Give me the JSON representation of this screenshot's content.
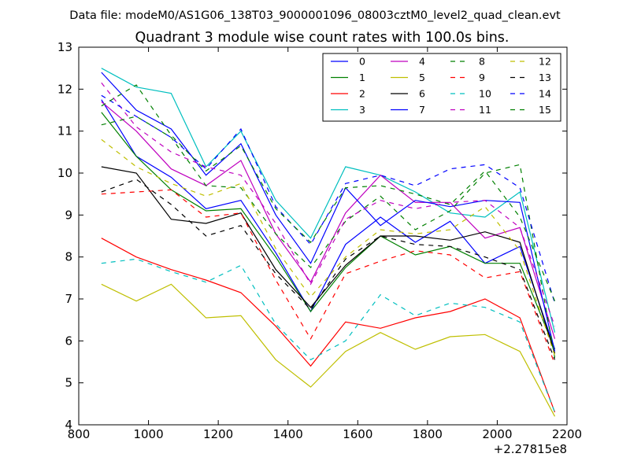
{
  "suptitle": "Data file: modeM0/AS1G06_138T03_9000001096_08003cztM0_level2_quad_clean.evt",
  "chart_data": {
    "type": "line",
    "title": "Quadrant 3 module wise count rates with 100.0s bins.",
    "xlabel": "",
    "ylabel": "",
    "x_offset_label": "+2.27815e8",
    "xlim": [
      800,
      2200
    ],
    "ylim": [
      4,
      13
    ],
    "xticks": [
      800,
      1000,
      1200,
      1400,
      1600,
      1800,
      2000,
      2200
    ],
    "yticks": [
      4,
      5,
      6,
      7,
      8,
      9,
      10,
      11,
      12,
      13
    ],
    "grid": false,
    "legend_position": "top-right",
    "legend_columns": 4,
    "x": [
      865,
      965,
      1065,
      1165,
      1265,
      1365,
      1465,
      1565,
      1665,
      1765,
      1865,
      1965,
      2065,
      2165
    ],
    "series": [
      {
        "name": "0",
        "color": "#0000ff",
        "dash": "solid",
        "values": [
          11.75,
          10.4,
          9.9,
          9.15,
          9.35,
          8.1,
          6.7,
          8.3,
          8.95,
          8.35,
          8.85,
          7.85,
          8.25,
          5.8
        ]
      },
      {
        "name": "1",
        "color": "#008000",
        "dash": "solid",
        "values": [
          11.45,
          10.4,
          9.6,
          9.1,
          9.15,
          8.0,
          6.7,
          7.75,
          8.5,
          8.05,
          8.25,
          7.85,
          7.85,
          5.8
        ]
      },
      {
        "name": "2",
        "color": "#ff0000",
        "dash": "solid",
        "values": [
          8.45,
          8.0,
          7.7,
          7.45,
          7.15,
          6.35,
          5.4,
          6.45,
          6.3,
          6.55,
          6.7,
          7.0,
          6.55,
          4.3
        ]
      },
      {
        "name": "3",
        "color": "#00bfbf",
        "dash": "solid",
        "values": [
          12.5,
          12.05,
          11.9,
          10.15,
          11.0,
          9.35,
          8.45,
          10.15,
          9.95,
          9.55,
          9.05,
          8.95,
          9.55,
          6.2
        ]
      },
      {
        "name": "4",
        "color": "#bf00bf",
        "dash": "solid",
        "values": [
          11.7,
          11.0,
          10.1,
          9.7,
          10.3,
          8.55,
          7.4,
          9.05,
          9.95,
          9.3,
          9.3,
          8.45,
          8.7,
          6.05
        ]
      },
      {
        "name": "5",
        "color": "#bfbf00",
        "dash": "solid",
        "values": [
          7.35,
          6.95,
          7.35,
          6.55,
          6.6,
          5.55,
          4.9,
          5.75,
          6.2,
          5.8,
          6.1,
          6.15,
          5.75,
          4.2
        ]
      },
      {
        "name": "6",
        "color": "#000000",
        "dash": "solid",
        "values": [
          10.15,
          10.0,
          8.9,
          8.8,
          9.05,
          7.7,
          6.8,
          7.8,
          8.5,
          8.5,
          8.4,
          8.6,
          8.35,
          5.7
        ]
      },
      {
        "name": "7",
        "color": "#0000ff",
        "dash": "solid",
        "values": [
          12.4,
          11.5,
          11.05,
          9.95,
          10.7,
          9.0,
          7.85,
          9.65,
          8.75,
          9.35,
          9.2,
          9.35,
          9.3,
          5.75
        ]
      },
      {
        "name": "8",
        "color": "#008000",
        "dash": "dashed",
        "values": [
          11.15,
          11.35,
          10.85,
          9.7,
          9.65,
          8.55,
          7.75,
          8.85,
          9.45,
          8.65,
          9.1,
          10.0,
          10.2,
          5.6
        ]
      },
      {
        "name": "9",
        "color": "#ff0000",
        "dash": "dashed",
        "values": [
          9.5,
          9.55,
          9.6,
          8.95,
          9.05,
          7.45,
          6.05,
          7.6,
          7.9,
          8.15,
          8.05,
          7.5,
          7.65,
          5.45
        ]
      },
      {
        "name": "10",
        "color": "#00bfbf",
        "dash": "dashed",
        "values": [
          7.85,
          7.95,
          7.65,
          7.4,
          7.8,
          6.4,
          5.55,
          6.0,
          7.1,
          6.6,
          6.9,
          6.8,
          6.45,
          4.3
        ]
      },
      {
        "name": "11",
        "color": "#bf00bf",
        "dash": "dashed",
        "values": [
          12.15,
          11.1,
          10.5,
          10.15,
          9.95,
          8.8,
          7.35,
          8.9,
          9.35,
          9.15,
          9.3,
          9.35,
          8.7,
          6.35
        ]
      },
      {
        "name": "12",
        "color": "#bfbf00",
        "dash": "dashed",
        "values": [
          10.8,
          10.15,
          9.75,
          9.45,
          9.75,
          8.2,
          7.05,
          8.0,
          8.65,
          8.55,
          8.65,
          9.2,
          8.15,
          5.65
        ]
      },
      {
        "name": "13",
        "color": "#000000",
        "dash": "dashed",
        "values": [
          9.55,
          9.85,
          9.25,
          8.5,
          8.75,
          7.6,
          6.75,
          7.95,
          8.5,
          8.3,
          8.25,
          8.0,
          7.7,
          5.55
        ]
      },
      {
        "name": "14",
        "color": "#0000ff",
        "dash": "dashed",
        "values": [
          11.85,
          11.35,
          10.85,
          10.1,
          11.05,
          9.2,
          8.3,
          9.75,
          9.95,
          9.7,
          10.1,
          10.2,
          9.65,
          6.9
        ]
      },
      {
        "name": "15",
        "color": "#008000",
        "dash": "dashed",
        "values": [
          11.6,
          12.1,
          10.9,
          10.05,
          10.65,
          9.15,
          8.35,
          9.65,
          9.7,
          9.5,
          9.25,
          10.05,
          8.95,
          6.95
        ]
      }
    ]
  }
}
